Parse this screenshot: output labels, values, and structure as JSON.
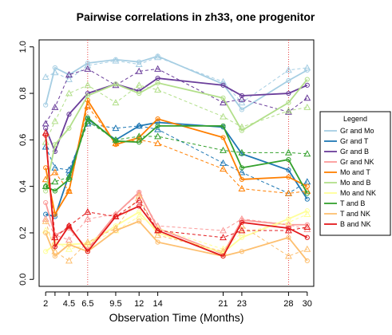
{
  "chart_data": {
    "type": "line",
    "title": "Pairwise correlations in zh33, one progenitor",
    "xlabel": "Observation Time (Months)",
    "ylabel": "",
    "x_ticks": [
      2,
      3,
      4.5,
      6.5,
      9.5,
      12,
      14,
      21,
      23,
      28,
      30
    ],
    "x_tick_labels": [
      "2",
      "",
      "4.5",
      "6.5",
      "9.5",
      "12",
      "14",
      "21",
      "23",
      "28",
      "30"
    ],
    "y_ticks": [
      0.0,
      0.2,
      0.4,
      0.6,
      0.8,
      1.0
    ],
    "y_tick_labels": [
      "0.0",
      "0.2",
      "0.4",
      "0.6",
      "0.8",
      "1.0"
    ],
    "xlim": [
      1.3,
      30.7
    ],
    "ylim": [
      -0.03,
      1.03
    ],
    "vlines": [
      6.5,
      28
    ],
    "legend_title": "Legend",
    "legend_position": "right",
    "series": [
      {
        "name": "Gr and Mo",
        "color": "#a6cee3",
        "x": [
          2,
          3,
          4.5,
          6.5,
          9.5,
          12,
          14,
          21,
          23,
          28,
          30
        ],
        "solid": [
          0.75,
          0.91,
          0.88,
          0.93,
          0.945,
          0.935,
          0.96,
          0.84,
          0.73,
          0.855,
          0.9
        ],
        "dashed": [
          0.87,
          0.89,
          0.86,
          0.92,
          0.94,
          0.925,
          0.955,
          0.85,
          0.76,
          0.9,
          0.91
        ]
      },
      {
        "name": "Gr and T",
        "color": "#1f78b4",
        "x": [
          2,
          3,
          4.5,
          6.5,
          9.5,
          12,
          14,
          21,
          23,
          28,
          30
        ],
        "solid": [
          0.28,
          0.27,
          0.45,
          0.69,
          0.6,
          0.66,
          0.675,
          0.655,
          0.54,
          0.47,
          0.345
        ],
        "dashed": [
          0.57,
          0.48,
          0.47,
          0.67,
          0.65,
          0.66,
          0.645,
          0.5,
          0.46,
          0.37,
          0.42
        ]
      },
      {
        "name": "Gr and B",
        "color": "#6a3d9a",
        "x": [
          2,
          3,
          4.5,
          6.5,
          9.5,
          12,
          14,
          21,
          23,
          28,
          30
        ],
        "solid": [
          0.65,
          0.55,
          0.71,
          0.8,
          0.84,
          0.81,
          0.865,
          0.835,
          0.79,
          0.8,
          0.835
        ],
        "dashed": [
          0.67,
          0.74,
          0.88,
          0.905,
          0.835,
          0.895,
          0.905,
          0.76,
          0.775,
          0.72,
          0.78
        ]
      },
      {
        "name": "Gr and NK",
        "color": "#fb9a99",
        "x": [
          2,
          3,
          4.5,
          6.5,
          9.5,
          12,
          14,
          21,
          23,
          28,
          30
        ],
        "solid": [
          0.33,
          0.19,
          0.22,
          0.13,
          0.28,
          0.375,
          0.22,
          0.11,
          0.255,
          0.235,
          0.235
        ],
        "dashed": [
          0.26,
          0.19,
          0.17,
          0.26,
          0.28,
          0.37,
          0.23,
          0.21,
          0.26,
          0.235,
          0.215
        ]
      },
      {
        "name": "Mo and T",
        "color": "#ff7f00",
        "x": [
          2,
          3,
          4.5,
          6.5,
          9.5,
          12,
          14,
          21,
          23,
          28,
          30
        ],
        "solid": [
          0.48,
          0.28,
          0.38,
          0.77,
          0.58,
          0.61,
          0.69,
          0.61,
          0.43,
          0.44,
          0.4
        ],
        "dashed": [
          0.43,
          0.46,
          0.38,
          0.745,
          0.585,
          0.6,
          0.585,
          0.475,
          0.39,
          0.37,
          0.38
        ]
      },
      {
        "name": "Mo and B",
        "color": "#b2df8a",
        "x": [
          2,
          3,
          4.5,
          6.5,
          9.5,
          12,
          14,
          21,
          23,
          28,
          30
        ],
        "solid": [
          0.38,
          0.58,
          0.65,
          0.79,
          0.84,
          0.8,
          0.845,
          0.78,
          0.64,
          0.76,
          0.86
        ],
        "dashed": [
          0.59,
          0.68,
          0.8,
          0.835,
          0.76,
          0.835,
          0.815,
          0.7,
          0.655,
          0.725,
          0.74
        ]
      },
      {
        "name": "Mo and NK",
        "color": "#ffff99",
        "x": [
          2,
          3,
          4.5,
          6.5,
          9.5,
          12,
          14,
          21,
          23,
          28,
          30
        ],
        "solid": [
          0.12,
          0.15,
          0.15,
          0.155,
          0.23,
          0.29,
          0.2,
          0.115,
          0.18,
          0.26,
          0.295
        ],
        "dashed": [
          0.21,
          0.16,
          0.13,
          0.15,
          0.21,
          0.27,
          0.22,
          0.13,
          0.2,
          0.245,
          0.28
        ]
      },
      {
        "name": "T and B",
        "color": "#33a02c",
        "x": [
          2,
          3,
          4.5,
          6.5,
          9.5,
          12,
          14,
          21,
          23,
          28,
          30
        ],
        "solid": [
          0.4,
          0.38,
          0.43,
          0.695,
          0.595,
          0.59,
          0.66,
          0.66,
          0.48,
          0.515,
          0.37
        ],
        "dashed": [
          0.4,
          0.42,
          0.44,
          0.68,
          0.6,
          0.615,
          0.615,
          0.555,
          0.545,
          0.545,
          0.54
        ]
      },
      {
        "name": "T and NK",
        "color": "#fdbf6f",
        "x": [
          2,
          3,
          4.5,
          6.5,
          9.5,
          12,
          14,
          21,
          23,
          28,
          30
        ],
        "solid": [
          0.2,
          0.1,
          0.15,
          0.12,
          0.21,
          0.25,
          0.16,
          0.1,
          0.12,
          0.18,
          0.08
        ],
        "dashed": [
          0.25,
          0.12,
          0.08,
          0.16,
          0.22,
          0.36,
          0.19,
          0.12,
          0.23,
          0.1,
          0.13
        ]
      },
      {
        "name": "B and NK",
        "color": "#e31a1c",
        "x": [
          2,
          3,
          4.5,
          6.5,
          9.5,
          12,
          14,
          21,
          23,
          28,
          30
        ],
        "solid": [
          0.62,
          0.14,
          0.23,
          0.12,
          0.27,
          0.315,
          0.21,
          0.1,
          0.245,
          0.22,
          0.18
        ],
        "dashed": [
          0.63,
          0.18,
          0.23,
          0.29,
          0.27,
          0.34,
          0.21,
          0.18,
          0.21,
          0.21,
          0.225
        ]
      }
    ]
  }
}
